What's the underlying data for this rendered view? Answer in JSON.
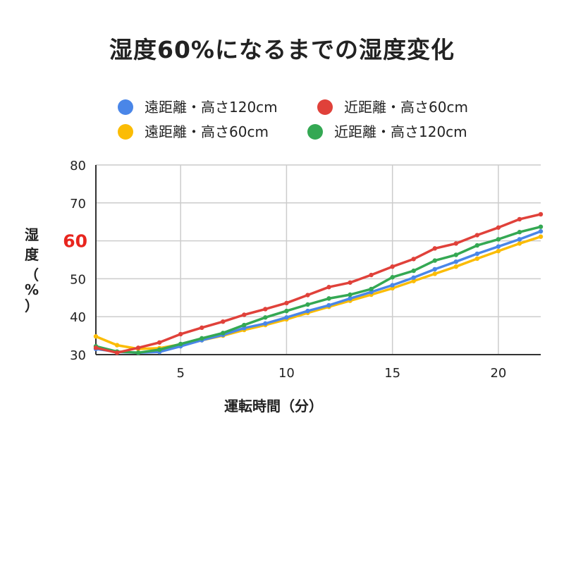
{
  "chart_data": {
    "type": "line",
    "title": "湿度60%になるまでの湿度変化",
    "xlabel": "運転時間（分）",
    "ylabel": "湿度（%）",
    "ylabel_chars": [
      "湿",
      "度",
      "（",
      "%",
      "）"
    ],
    "xlim": [
      1,
      22
    ],
    "ylim": [
      30,
      80
    ],
    "xticks": [
      5,
      10,
      15,
      20
    ],
    "yticks": [
      30,
      40,
      50,
      60,
      70,
      80
    ],
    "highlight_ytick": 60,
    "highlight_color": "#e8251e",
    "grid": true,
    "legend_position": "top",
    "x": [
      1,
      2,
      3,
      4,
      5,
      6,
      7,
      8,
      9,
      10,
      11,
      12,
      13,
      14,
      15,
      16,
      17,
      18,
      19,
      20,
      21,
      22
    ],
    "series": [
      {
        "name": "遠距離・高さ120cm",
        "color": "#4a86e8",
        "values": [
          31.5,
          30.7,
          30.5,
          30.7,
          32.2,
          33.8,
          35.2,
          37,
          38.2,
          39.8,
          41.5,
          43,
          44.8,
          46.5,
          48.3,
          50.3,
          52.5,
          54.5,
          56.6,
          58.5,
          60.4,
          62.5
        ]
      },
      {
        "name": "近距離・高さ60cm",
        "color": "#e0413a",
        "values": [
          31.8,
          30.5,
          31.8,
          33.2,
          35.4,
          37.1,
          38.7,
          40.5,
          42,
          43.6,
          45.7,
          47.8,
          49,
          51,
          53.2,
          55.2,
          58,
          59.3,
          61.5,
          63.5,
          65.7,
          67
        ]
      },
      {
        "name": "遠距離・高さ60cm",
        "color": "#fbbc04",
        "values": [
          34.8,
          32.5,
          31.5,
          31.7,
          32.7,
          33.8,
          35,
          36.5,
          37.8,
          39.3,
          41,
          42.6,
          44.2,
          45.8,
          47.5,
          49.4,
          51.3,
          53.2,
          55.3,
          57.3,
          59.3,
          61.1
        ]
      },
      {
        "name": "近距離・高さ120cm",
        "color": "#34a853",
        "values": [
          32.2,
          30.8,
          30.5,
          31.3,
          32.8,
          34.3,
          35.7,
          37.8,
          39.8,
          41.5,
          43.2,
          44.8,
          45.8,
          47.3,
          50.4,
          52.1,
          54.8,
          56.3,
          58.8,
          60.4,
          62.3,
          63.7
        ]
      }
    ]
  }
}
